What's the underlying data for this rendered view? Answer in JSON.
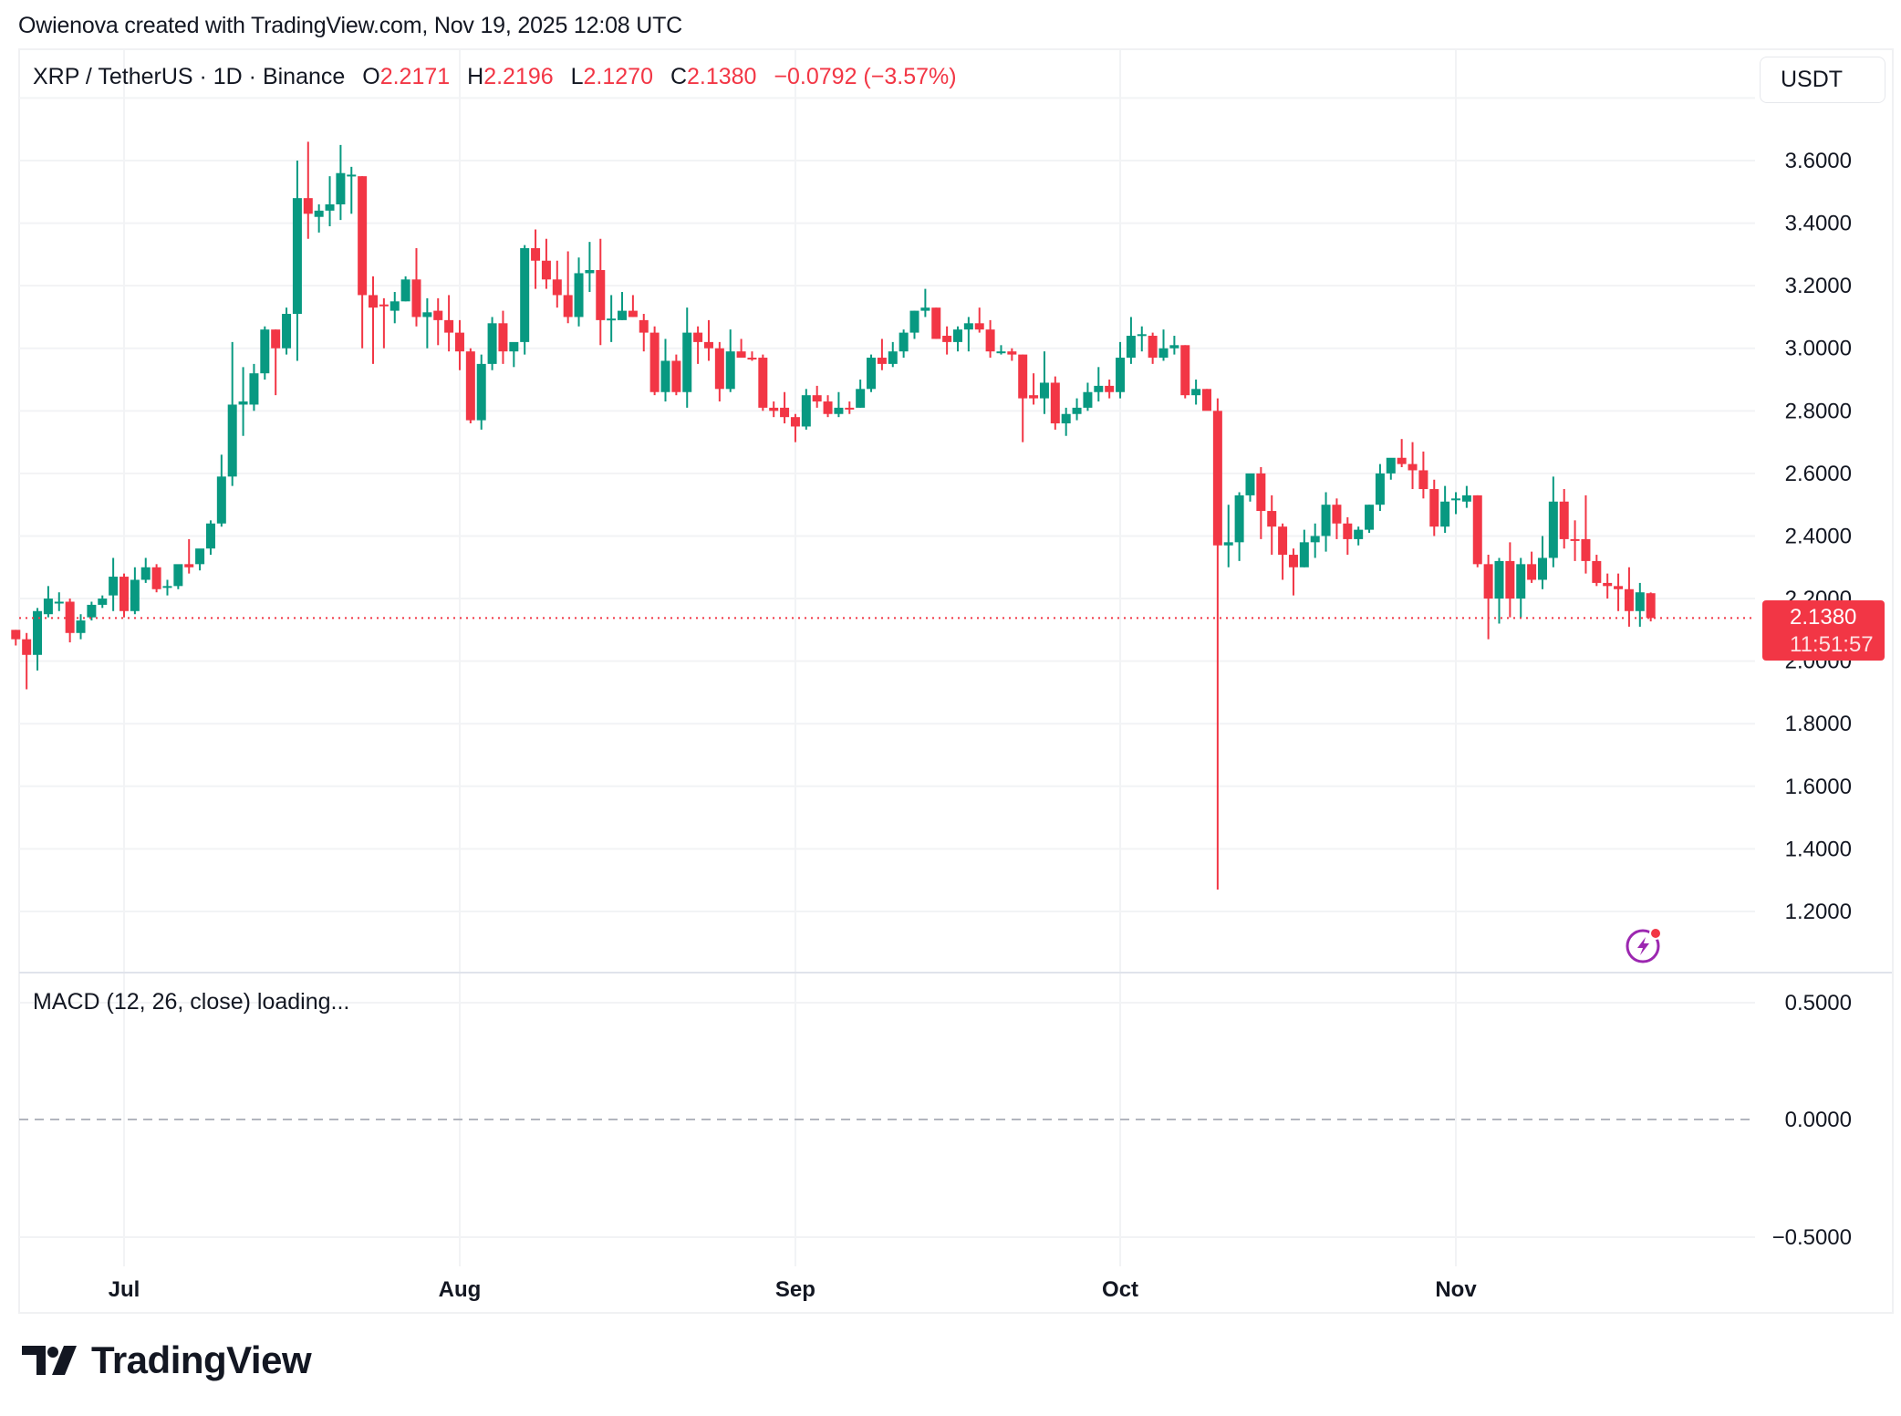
{
  "caption": "Owienova created with TradingView.com, Nov 19, 2025 12:08 UTC",
  "legend": {
    "symbol": "XRP / TetherUS · 1D · Binance",
    "o_label": "O",
    "o_value": "2.2171",
    "h_label": "H",
    "h_value": "2.2196",
    "l_label": "L",
    "l_value": "2.1270",
    "c_label": "C",
    "c_value": "2.1380",
    "change": "−0.0792 (−3.57%)"
  },
  "currency_button": "USDT",
  "last_price_tag": {
    "price": "2.1380",
    "countdown": "11:51:57"
  },
  "macd": {
    "title": "MACD (12, 26, close) loading...",
    "ticks": [
      "0.5000",
      "0.0000",
      "−0.5000"
    ]
  },
  "icons": {
    "alert": "lightning-bolt-icon"
  },
  "colors": {
    "up": "#089981",
    "down": "#f23645",
    "grid": "#f2f3f5",
    "text": "#131722",
    "bolt": "#9c27b0"
  },
  "logo": {
    "text": "TradingView"
  },
  "chart_data": {
    "type": "candlestick",
    "title": "XRP / TetherUS · 1D · Binance",
    "xlabel": "",
    "ylabel": "USDT",
    "ylim": [
      1.1,
      3.8
    ],
    "y_ticks": [
      "3.6000",
      "3.4000",
      "3.2000",
      "3.0000",
      "2.8000",
      "2.6000",
      "2.4000",
      "2.2000",
      "2.0000",
      "1.8000",
      "1.6000",
      "1.4000",
      "1.2000"
    ],
    "x_ticks": [
      "Jul",
      "Aug",
      "Sep",
      "Oct",
      "Nov"
    ],
    "grid": true,
    "last_price_line": 2.138,
    "start_date": "2025-06-21",
    "end_date": "2025-11-19",
    "ohlc": [
      [
        2.1,
        2.1,
        2.05,
        2.07
      ],
      [
        2.07,
        2.09,
        1.91,
        2.02
      ],
      [
        2.02,
        2.17,
        1.97,
        2.16
      ],
      [
        2.15,
        2.24,
        2.14,
        2.2
      ],
      [
        2.19,
        2.22,
        2.16,
        2.19
      ],
      [
        2.19,
        2.2,
        2.06,
        2.09
      ],
      [
        2.09,
        2.15,
        2.07,
        2.13
      ],
      [
        2.14,
        2.19,
        2.13,
        2.18
      ],
      [
        2.18,
        2.21,
        2.17,
        2.2
      ],
      [
        2.21,
        2.33,
        2.16,
        2.27
      ],
      [
        2.27,
        2.28,
        2.14,
        2.16
      ],
      [
        2.16,
        2.3,
        2.15,
        2.26
      ],
      [
        2.26,
        2.33,
        2.25,
        2.3
      ],
      [
        2.3,
        2.31,
        2.22,
        2.23
      ],
      [
        2.24,
        2.26,
        2.21,
        2.24
      ],
      [
        2.24,
        2.3,
        2.23,
        2.31
      ],
      [
        2.31,
        2.39,
        2.28,
        2.3
      ],
      [
        2.31,
        2.34,
        2.29,
        2.36
      ],
      [
        2.36,
        2.45,
        2.34,
        2.44
      ],
      [
        2.44,
        2.66,
        2.43,
        2.59
      ],
      [
        2.59,
        3.02,
        2.56,
        2.82
      ],
      [
        2.82,
        2.94,
        2.72,
        2.83
      ],
      [
        2.82,
        2.95,
        2.8,
        2.92
      ],
      [
        2.92,
        3.07,
        2.9,
        3.06
      ],
      [
        3.06,
        3.06,
        2.85,
        3.0
      ],
      [
        3.0,
        3.13,
        2.98,
        3.11
      ],
      [
        3.11,
        3.6,
        2.96,
        3.48
      ],
      [
        3.48,
        3.66,
        3.35,
        3.43
      ],
      [
        3.42,
        3.46,
        3.37,
        3.44
      ],
      [
        3.44,
        3.55,
        3.39,
        3.46
      ],
      [
        3.46,
        3.65,
        3.41,
        3.56
      ],
      [
        3.55,
        3.58,
        3.43,
        3.555
      ],
      [
        3.55,
        3.55,
        3.0,
        3.17
      ],
      [
        3.17,
        3.23,
        2.95,
        3.13
      ],
      [
        3.14,
        3.16,
        3.0,
        3.135
      ],
      [
        3.12,
        3.18,
        3.08,
        3.15
      ],
      [
        3.15,
        3.23,
        3.15,
        3.22
      ],
      [
        3.22,
        3.32,
        3.07,
        3.1
      ],
      [
        3.1,
        3.16,
        3.0,
        3.115
      ],
      [
        3.12,
        3.16,
        3.01,
        3.09
      ],
      [
        3.09,
        3.17,
        2.99,
        3.05
      ],
      [
        3.05,
        3.09,
        2.93,
        2.99
      ],
      [
        2.99,
        3.0,
        2.76,
        2.77
      ],
      [
        2.77,
        2.98,
        2.74,
        2.95
      ],
      [
        2.95,
        3.1,
        2.93,
        3.08
      ],
      [
        3.08,
        3.12,
        2.95,
        2.99
      ],
      [
        2.99,
        3.01,
        2.94,
        3.02
      ],
      [
        3.02,
        3.33,
        2.98,
        3.32
      ],
      [
        3.32,
        3.38,
        3.19,
        3.28
      ],
      [
        3.28,
        3.35,
        3.19,
        3.22
      ],
      [
        3.22,
        3.28,
        3.13,
        3.17
      ],
      [
        3.17,
        3.31,
        3.08,
        3.1
      ],
      [
        3.1,
        3.29,
        3.07,
        3.24
      ],
      [
        3.24,
        3.34,
        3.18,
        3.25
      ],
      [
        3.25,
        3.35,
        3.01,
        3.09
      ],
      [
        3.09,
        3.17,
        3.02,
        3.095
      ],
      [
        3.09,
        3.18,
        3.09,
        3.12
      ],
      [
        3.12,
        3.17,
        3.1,
        3.1
      ],
      [
        3.09,
        3.11,
        2.99,
        3.05
      ],
      [
        3.05,
        3.07,
        2.85,
        2.86
      ],
      [
        2.86,
        3.03,
        2.83,
        2.96
      ],
      [
        2.96,
        2.98,
        2.85,
        2.86
      ],
      [
        2.86,
        3.13,
        2.81,
        3.05
      ],
      [
        3.05,
        3.07,
        2.95,
        3.02
      ],
      [
        3.02,
        3.09,
        2.96,
        3.0
      ],
      [
        3.0,
        3.02,
        2.83,
        2.87
      ],
      [
        2.87,
        3.06,
        2.86,
        2.99
      ],
      [
        2.99,
        3.03,
        2.97,
        2.97
      ],
      [
        2.97,
        2.99,
        2.96,
        2.965
      ],
      [
        2.97,
        2.98,
        2.8,
        2.81
      ],
      [
        2.81,
        2.83,
        2.78,
        2.8
      ],
      [
        2.81,
        2.86,
        2.76,
        2.78
      ],
      [
        2.78,
        2.79,
        2.7,
        2.75
      ],
      [
        2.75,
        2.87,
        2.74,
        2.85
      ],
      [
        2.85,
        2.88,
        2.81,
        2.83
      ],
      [
        2.83,
        2.85,
        2.78,
        2.79
      ],
      [
        2.79,
        2.86,
        2.78,
        2.81
      ],
      [
        2.81,
        2.83,
        2.79,
        2.805
      ],
      [
        2.81,
        2.9,
        2.81,
        2.87
      ],
      [
        2.87,
        2.98,
        2.86,
        2.97
      ],
      [
        2.97,
        3.03,
        2.93,
        2.95
      ],
      [
        2.95,
        3.02,
        2.94,
        2.99
      ],
      [
        2.99,
        3.06,
        2.97,
        3.05
      ],
      [
        3.05,
        3.12,
        3.03,
        3.12
      ],
      [
        3.12,
        3.19,
        3.1,
        3.13
      ],
      [
        3.13,
        3.13,
        3.03,
        3.03
      ],
      [
        3.04,
        3.07,
        2.98,
        3.02
      ],
      [
        3.02,
        3.07,
        2.99,
        3.06
      ],
      [
        3.06,
        3.1,
        2.99,
        3.08
      ],
      [
        3.08,
        3.13,
        3.05,
        3.06
      ],
      [
        3.06,
        3.09,
        2.97,
        2.99
      ],
      [
        2.99,
        3.01,
        2.98,
        2.99
      ],
      [
        2.99,
        3.0,
        2.96,
        2.98
      ],
      [
        2.98,
        2.98,
        2.7,
        2.84
      ],
      [
        2.85,
        2.92,
        2.82,
        2.84
      ],
      [
        2.84,
        2.99,
        2.79,
        2.89
      ],
      [
        2.89,
        2.91,
        2.74,
        2.76
      ],
      [
        2.76,
        2.81,
        2.72,
        2.79
      ],
      [
        2.79,
        2.84,
        2.77,
        2.81
      ],
      [
        2.81,
        2.89,
        2.8,
        2.86
      ],
      [
        2.86,
        2.94,
        2.83,
        2.88
      ],
      [
        2.88,
        2.9,
        2.84,
        2.86
      ],
      [
        2.86,
        3.02,
        2.84,
        2.97
      ],
      [
        2.97,
        3.1,
        2.95,
        3.04
      ],
      [
        3.04,
        3.07,
        2.99,
        3.045
      ],
      [
        3.04,
        3.05,
        2.95,
        2.97
      ],
      [
        2.97,
        3.06,
        2.96,
        3.0
      ],
      [
        3.0,
        3.04,
        2.98,
        3.01
      ],
      [
        3.01,
        3.01,
        2.84,
        2.85
      ],
      [
        2.85,
        2.9,
        2.82,
        2.87
      ],
      [
        2.87,
        2.87,
        2.81,
        2.8
      ],
      [
        2.8,
        2.84,
        1.27,
        2.37
      ],
      [
        2.37,
        2.5,
        2.3,
        2.38
      ],
      [
        2.38,
        2.54,
        2.32,
        2.53
      ],
      [
        2.53,
        2.58,
        2.51,
        2.6
      ],
      [
        2.6,
        2.62,
        2.39,
        2.48
      ],
      [
        2.48,
        2.53,
        2.34,
        2.43
      ],
      [
        2.43,
        2.44,
        2.26,
        2.34
      ],
      [
        2.34,
        2.36,
        2.21,
        2.3
      ],
      [
        2.3,
        2.42,
        2.3,
        2.38
      ],
      [
        2.38,
        2.44,
        2.33,
        2.4
      ],
      [
        2.4,
        2.54,
        2.35,
        2.5
      ],
      [
        2.5,
        2.52,
        2.39,
        2.44
      ],
      [
        2.44,
        2.46,
        2.34,
        2.39
      ],
      [
        2.39,
        2.43,
        2.37,
        2.42
      ],
      [
        2.42,
        2.5,
        2.41,
        2.5
      ],
      [
        2.5,
        2.63,
        2.48,
        2.6
      ],
      [
        2.6,
        2.64,
        2.58,
        2.65
      ],
      [
        2.65,
        2.71,
        2.62,
        2.63
      ],
      [
        2.63,
        2.7,
        2.55,
        2.61
      ],
      [
        2.61,
        2.67,
        2.52,
        2.55
      ],
      [
        2.55,
        2.58,
        2.4,
        2.43
      ],
      [
        2.43,
        2.56,
        2.41,
        2.51
      ],
      [
        2.52,
        2.54,
        2.47,
        2.52
      ],
      [
        2.51,
        2.56,
        2.49,
        2.53
      ],
      [
        2.53,
        2.53,
        2.3,
        2.31
      ],
      [
        2.31,
        2.34,
        2.07,
        2.2
      ],
      [
        2.2,
        2.33,
        2.12,
        2.32
      ],
      [
        2.32,
        2.38,
        2.14,
        2.2
      ],
      [
        2.2,
        2.33,
        2.14,
        2.31
      ],
      [
        2.31,
        2.35,
        2.25,
        2.26
      ],
      [
        2.26,
        2.4,
        2.23,
        2.33
      ],
      [
        2.33,
        2.59,
        2.3,
        2.51
      ],
      [
        2.51,
        2.55,
        2.36,
        2.39
      ],
      [
        2.39,
        2.45,
        2.32,
        2.385
      ],
      [
        2.39,
        2.53,
        2.28,
        2.32
      ],
      [
        2.32,
        2.34,
        2.24,
        2.25
      ],
      [
        2.25,
        2.28,
        2.2,
        2.24
      ],
      [
        2.24,
        2.28,
        2.16,
        2.23
      ],
      [
        2.23,
        2.3,
        2.11,
        2.16
      ],
      [
        2.16,
        2.25,
        2.11,
        2.22
      ],
      [
        2.2171,
        2.2196,
        2.127,
        2.138
      ]
    ]
  }
}
